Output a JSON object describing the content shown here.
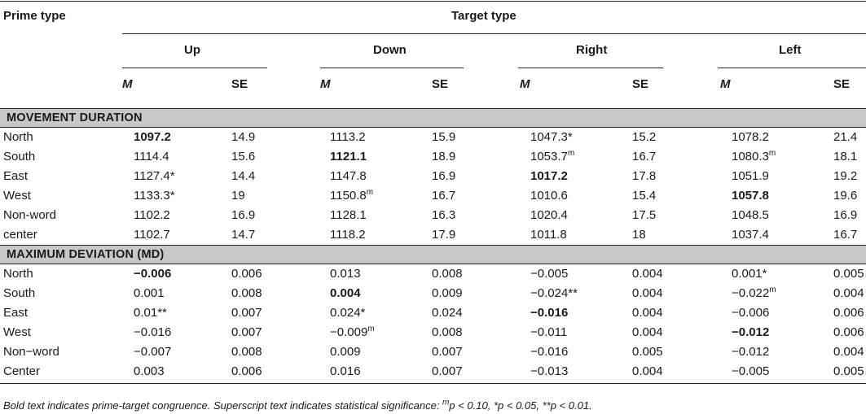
{
  "header": {
    "prime_type": "Prime type",
    "target_type": "Target type",
    "groups": [
      "Up",
      "Down",
      "Right",
      "Left"
    ],
    "m_label": "M",
    "se_label": "SE"
  },
  "sections": [
    {
      "title": "MOVEMENT DURATION",
      "rows": [
        {
          "label": "North",
          "cells": [
            {
              "v": "1097.2",
              "b": true
            },
            {
              "v": "14.9"
            },
            {
              "v": "1113.2"
            },
            {
              "v": "15.9"
            },
            {
              "v": "1047.3*"
            },
            {
              "v": "15.2"
            },
            {
              "v": "1078.2"
            },
            {
              "v": "21.4"
            }
          ]
        },
        {
          "label": "South",
          "cells": [
            {
              "v": "1114.4"
            },
            {
              "v": "15.6"
            },
            {
              "v": "1121.1",
              "b": true
            },
            {
              "v": "18.9"
            },
            {
              "v": "1053.7",
              "sup": "m"
            },
            {
              "v": "16.7"
            },
            {
              "v": "1080.3",
              "sup": "m"
            },
            {
              "v": "18.1"
            }
          ]
        },
        {
          "label": "East",
          "cells": [
            {
              "v": "1127.4*"
            },
            {
              "v": "14.4"
            },
            {
              "v": "1147.8"
            },
            {
              "v": "16.9"
            },
            {
              "v": "1017.2",
              "b": true
            },
            {
              "v": "17.8"
            },
            {
              "v": "1051.9"
            },
            {
              "v": "19.2"
            }
          ]
        },
        {
          "label": "West",
          "cells": [
            {
              "v": "1133.3*"
            },
            {
              "v": "19"
            },
            {
              "v": "1150.8",
              "sup": "m"
            },
            {
              "v": "16.7"
            },
            {
              "v": "1010.6"
            },
            {
              "v": "15.4"
            },
            {
              "v": "1057.8",
              "b": true
            },
            {
              "v": "19.6"
            }
          ]
        },
        {
          "label": "Non-word",
          "cells": [
            {
              "v": "1102.2"
            },
            {
              "v": "16.9"
            },
            {
              "v": "1128.1"
            },
            {
              "v": "16.3"
            },
            {
              "v": "1020.4"
            },
            {
              "v": "17.5"
            },
            {
              "v": "1048.5"
            },
            {
              "v": "16.9"
            }
          ]
        },
        {
          "label": "center",
          "cells": [
            {
              "v": "1102.7"
            },
            {
              "v": "14.7"
            },
            {
              "v": "1118.2"
            },
            {
              "v": "17.9"
            },
            {
              "v": "1011.8"
            },
            {
              "v": "18"
            },
            {
              "v": "1037.4"
            },
            {
              "v": "16.7"
            }
          ]
        }
      ]
    },
    {
      "title": "MAXIMUM DEVIATION (MD)",
      "rows": [
        {
          "label": "North",
          "cells": [
            {
              "v": "−0.006",
              "b": true
            },
            {
              "v": "0.006"
            },
            {
              "v": "0.013"
            },
            {
              "v": "0.008"
            },
            {
              "v": "−0.005"
            },
            {
              "v": "0.004"
            },
            {
              "v": "0.001*"
            },
            {
              "v": "0.005"
            }
          ]
        },
        {
          "label": "South",
          "cells": [
            {
              "v": "0.001"
            },
            {
              "v": "0.008"
            },
            {
              "v": "0.004",
              "b": true
            },
            {
              "v": "0.009"
            },
            {
              "v": "−0.024**"
            },
            {
              "v": "0.004"
            },
            {
              "v": "−0.022",
              "sup": "m"
            },
            {
              "v": "0.004"
            }
          ]
        },
        {
          "label": "East",
          "cells": [
            {
              "v": "0.01**"
            },
            {
              "v": "0.007"
            },
            {
              "v": "0.024*"
            },
            {
              "v": "0.024"
            },
            {
              "v": "−0.016",
              "b": true
            },
            {
              "v": "0.004"
            },
            {
              "v": "−0.006"
            },
            {
              "v": "0.006"
            }
          ]
        },
        {
          "label": "West",
          "cells": [
            {
              "v": "−0.016"
            },
            {
              "v": "0.007"
            },
            {
              "v": "−0.009",
              "sup": "m"
            },
            {
              "v": "0.008"
            },
            {
              "v": "−0.011"
            },
            {
              "v": "0.004"
            },
            {
              "v": "−0.012",
              "b": true
            },
            {
              "v": "0.006"
            }
          ]
        },
        {
          "label": "Non−word",
          "cells": [
            {
              "v": "−0.007"
            },
            {
              "v": "0.008"
            },
            {
              "v": "0.009"
            },
            {
              "v": "0.007"
            },
            {
              "v": "−0.016"
            },
            {
              "v": "0.005"
            },
            {
              "v": "−0.012"
            },
            {
              "v": "0.004"
            }
          ]
        },
        {
          "label": "Center",
          "cells": [
            {
              "v": "0.003"
            },
            {
              "v": "0.006"
            },
            {
              "v": "0.016"
            },
            {
              "v": "0.007"
            },
            {
              "v": "−0.013"
            },
            {
              "v": "0.004"
            },
            {
              "v": "−0.005"
            },
            {
              "v": "0.005"
            }
          ]
        }
      ]
    }
  ],
  "footnote": {
    "part1": "Bold text indicates prime-target congruence. Superscript text indicates statistical significance: ",
    "sup_m": "m",
    "part2": "p < 0.10, *p < 0.05, **p < 0.01."
  }
}
